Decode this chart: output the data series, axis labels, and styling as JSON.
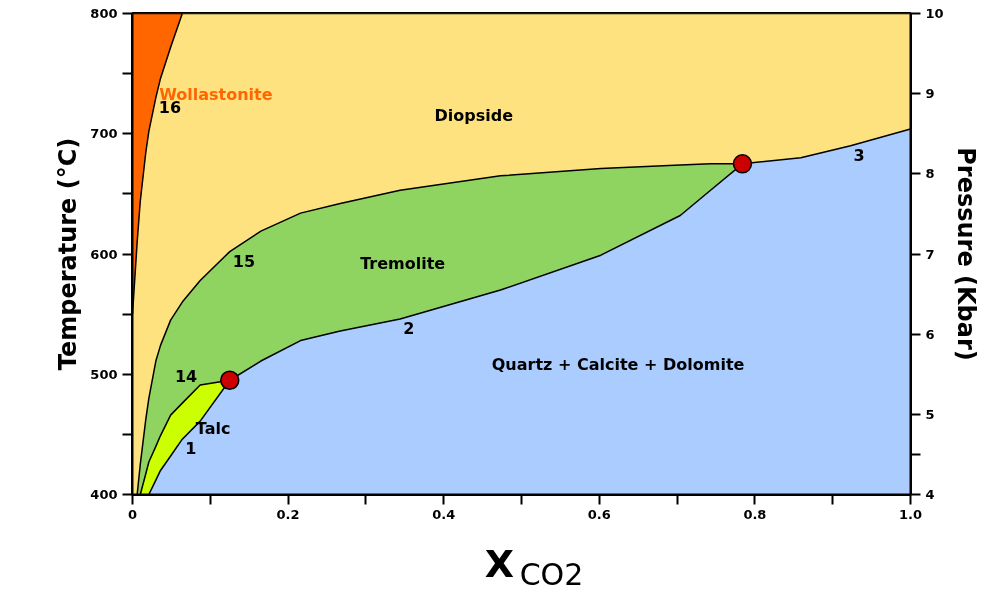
{
  "chart_data": {
    "type": "area",
    "xlabel": "X$_{CO2}$",
    "ylabel": "Temperature (°C)",
    "y2label": "Pressure (Kbar)",
    "xlim": [
      0,
      1.0
    ],
    "ylim": [
      400,
      800
    ],
    "y2lim": [
      4,
      10
    ],
    "xticks": [
      0,
      {
        "value": 0.1,
        "label": null
      },
      0.2,
      {
        "value": 0.3,
        "label": null
      },
      0.4,
      {
        "value": 0.5,
        "label": null
      },
      0.6,
      {
        "value": 0.7,
        "label": null
      },
      0.8,
      {
        "value": 0.9,
        "label": null
      },
      {
        "value": 1.0,
        "label": "1.0"
      }
    ],
    "yticks": [
      400,
      {
        "value": 450,
        "label": null
      },
      500,
      {
        "value": 550,
        "label": null
      },
      600,
      {
        "value": 650,
        "label": null
      },
      700,
      {
        "value": 750,
        "label": null
      },
      800
    ],
    "y2ticks": [
      4,
      {
        "value": 4.5,
        "label": null
      },
      5,
      6,
      7,
      8,
      9,
      10
    ],
    "grid": false,
    "legend": false,
    "series": [
      {
        "name": "Wollastonite",
        "color": "#ff6600",
        "x": [
          0,
          0.006,
          0.01,
          0.017,
          0.021,
          0.03,
          0.036,
          0.049,
          0.064
        ],
        "values": [
          800,
          800,
          800,
          800,
          800,
          800,
          800,
          800,
          800
        ]
      },
      {
        "name": "Diopside",
        "color": "#ffe280",
        "x": [
          0,
          0.006,
          0.01,
          0.017,
          0.021,
          0.03,
          0.036,
          0.049,
          0.064,
          0.087,
          0.125,
          0.165,
          0.216,
          0.267,
          0.344,
          0.473,
          0.602,
          0.704,
          0.743,
          0.784,
          0.859,
          0.923,
          1.0
        ],
        "values": [
          550,
          610,
          644,
          684,
          702,
          730,
          746,
          772,
          800,
          800,
          800,
          800,
          800,
          800,
          800,
          800,
          800,
          800,
          800,
          800,
          800,
          800,
          800
        ]
      },
      {
        "name": "Tremolite",
        "color": "#8fd460",
        "x": [
          0.006,
          0.01,
          0.017,
          0.021,
          0.03,
          0.036,
          0.049,
          0.064,
          0.087,
          0.125,
          0.165,
          0.216,
          0.267,
          0.344,
          0.473,
          0.602,
          0.704,
          0.743,
          0.784
        ],
        "values": [
          400,
          425,
          462,
          480,
          511,
          524,
          545,
          560,
          578,
          602,
          619,
          634,
          642,
          653,
          665,
          671,
          674,
          675,
          675
        ]
      },
      {
        "name": "Talc",
        "color": "#ccff00",
        "x": [
          0.01,
          0.017,
          0.021,
          0.03,
          0.036,
          0.049,
          0.064,
          0.087,
          0.125
        ],
        "values": [
          400,
          417,
          427,
          440,
          449,
          466,
          476,
          491,
          495
        ]
      },
      {
        "name": "Quartz + Calcite + Dolomite",
        "color": "#aaccff",
        "x": [
          0.021,
          0.03,
          0.036,
          0.049,
          0.064,
          0.087,
          0.125,
          0.165,
          0.216,
          0.267,
          0.344,
          0.473,
          0.602,
          0.704,
          0.743,
          0.784,
          0.859,
          0.923,
          1.0
        ],
        "values": [
          400,
          412,
          420,
          432,
          446,
          461,
          495,
          511,
          528,
          536,
          546,
          570,
          599,
          632,
          653,
          675,
          680,
          690,
          704
        ]
      },
      {
        "type": "scatter",
        "marker": "circle",
        "color": "#cc0000",
        "x": [
          0.125,
          0.784
        ],
        "values": [
          495,
          675
        ]
      }
    ],
    "annotations": [
      {
        "text": "16",
        "x": 0.03,
        "y": 730
      },
      {
        "text": "15",
        "x": 0.125,
        "y": 602
      },
      {
        "text": "14",
        "x": 0.087,
        "y": 491
      },
      {
        "text": "1",
        "x": 0.064,
        "y": 446
      },
      {
        "text": "2",
        "x": 0.344,
        "y": 546
      },
      {
        "text": "3",
        "x": 0.923,
        "y": 690
      }
    ]
  }
}
